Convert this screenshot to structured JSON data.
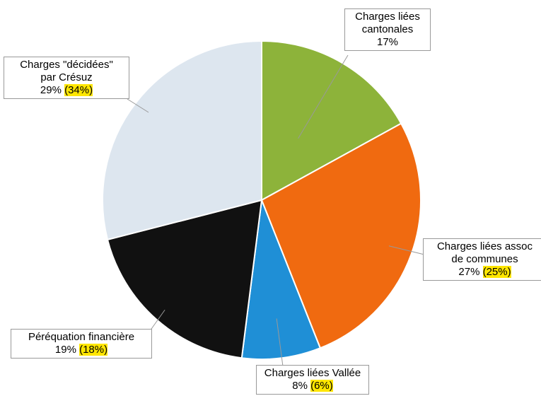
{
  "chart_data": {
    "type": "pie",
    "categories": [
      "Charges liées\ncantonales",
      "Charges liées assoc\nde communes",
      "Charges liées Vallée",
      "Péréquation financière",
      "Charges \"décidées\"\npar Crésuz"
    ],
    "values": [
      17,
      27,
      8,
      19,
      29
    ],
    "value_labels": [
      "17%",
      "27%",
      "8%",
      "19%",
      "29%"
    ],
    "secondary_labels": [
      null,
      "(25%)",
      "(6%)",
      "(18%)",
      "(34%)"
    ],
    "colors": [
      "#8db33a",
      "#f06a10",
      "#1f8fd6",
      "#111111",
      "#dde6ef"
    ]
  }
}
